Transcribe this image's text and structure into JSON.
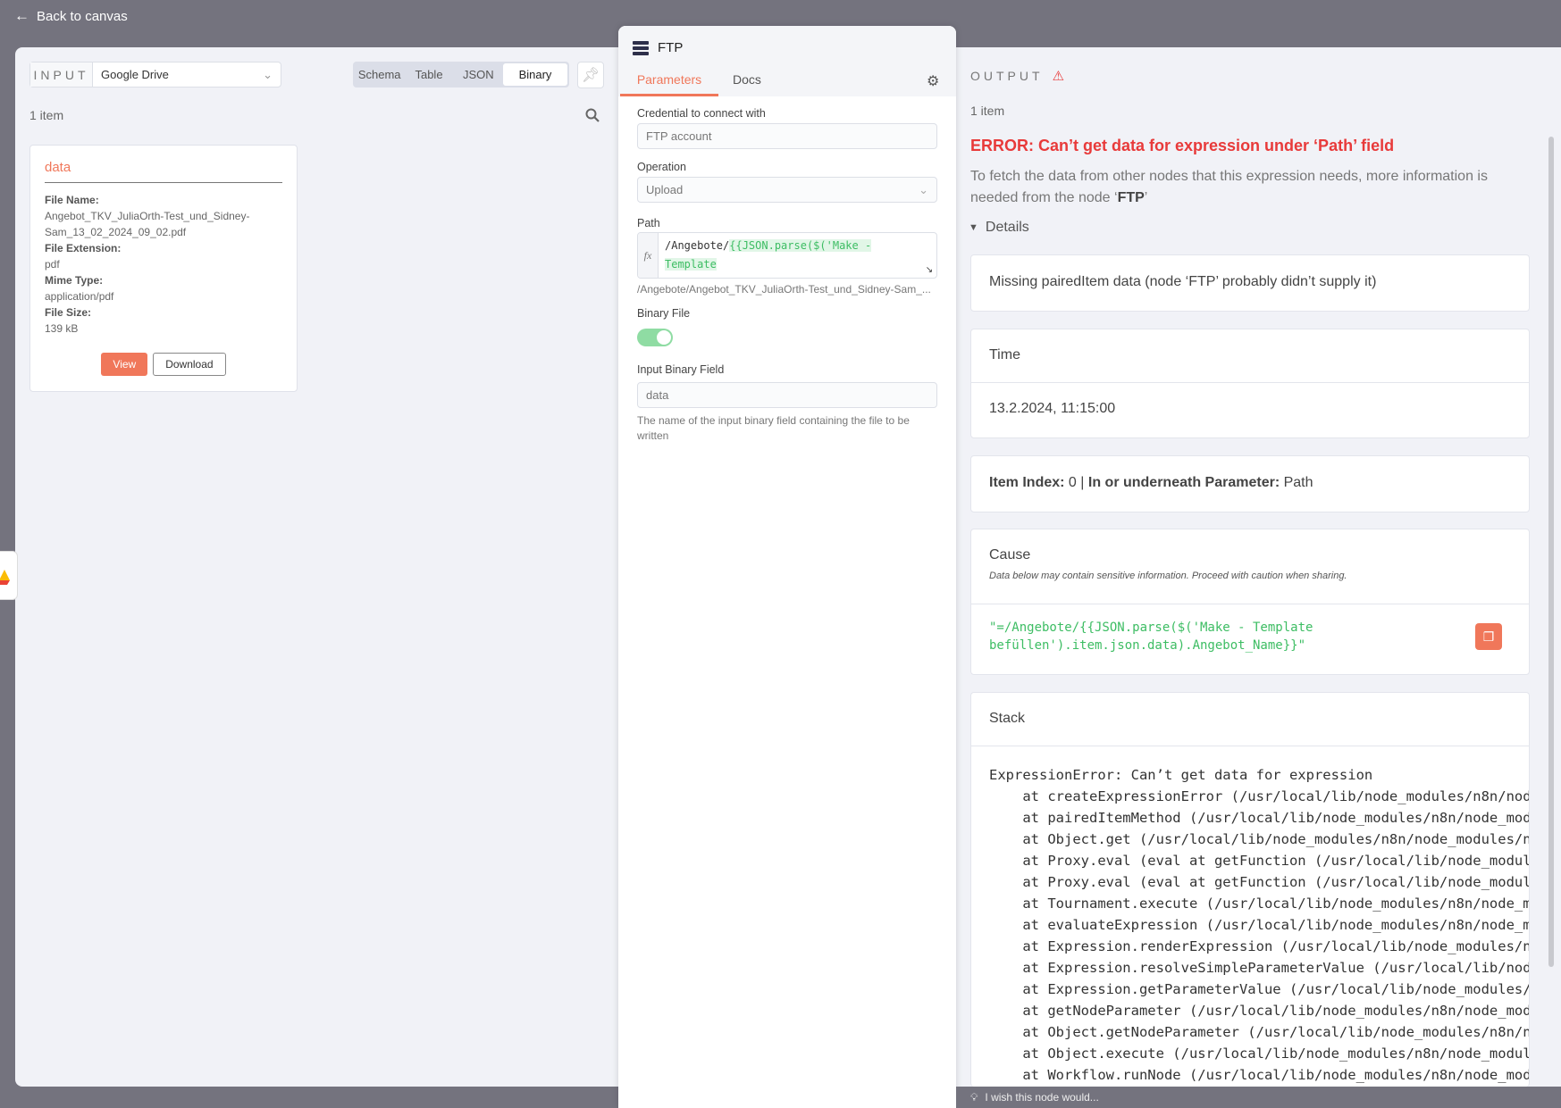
{
  "header": {
    "back_label": "Back to canvas"
  },
  "input": {
    "label": "INPUT",
    "node": "Google Drive",
    "tabs": [
      "Schema",
      "Table",
      "JSON",
      "Binary"
    ],
    "active_tab": "Binary",
    "count": "1 item",
    "binary": {
      "title": "data",
      "fields": [
        {
          "key": "File Name:",
          "value": "Angebot_TKV_JuliaOrth-Test_und_Sidney-Sam_13_02_2024_09_02.pdf"
        },
        {
          "key": "File Extension:",
          "value": "pdf"
        },
        {
          "key": "Mime Type:",
          "value": "application/pdf"
        },
        {
          "key": "File Size:",
          "value": "139 kB"
        }
      ],
      "view_label": "View",
      "download_label": "Download"
    }
  },
  "node": {
    "title": "FTP",
    "tabs": {
      "parameters": "Parameters",
      "docs": "Docs"
    },
    "credential": {
      "label": "Credential to connect with",
      "value": "FTP account"
    },
    "operation": {
      "label": "Operation",
      "value": "Upload"
    },
    "path": {
      "label": "Path",
      "static": "/Angebote/",
      "expr": "{{JSON.parse($('Make - Template befüllen').item.json.data).Angebot_Name}}",
      "preview": "/Angebote/Angebot_TKV_JuliaOrth-Test_und_Sidney-Sam_..."
    },
    "binary_file": {
      "label": "Binary File",
      "enabled": true
    },
    "input_binary_field": {
      "label": "Input Binary Field",
      "value": "data",
      "hint": "The name of the input binary field containing the file to be written"
    }
  },
  "output": {
    "label": "OUTPUT",
    "count": "1 item",
    "error_title": "ERROR: Can’t get data for expression under ‘Path’ field",
    "error_desc": "To fetch the data from other nodes that this expression needs, more information is needed from the node ‘",
    "error_desc_node": "FTP",
    "error_desc_end": "’",
    "details_label": "Details",
    "message": "Missing pairedItem data (node ‘FTP’ probably didn’t supply it)",
    "time_label": "Time",
    "time_value": "13.2.2024, 11:15:00",
    "item_index_label": "Item Index:",
    "item_index": "0",
    "param_label": "In or underneath Parameter:",
    "param_value": "Path",
    "cause_label": "Cause",
    "cause_note": "Data below may contain sensitive information. Proceed with caution when sharing.",
    "cause_value": "\"=/Angebote/{{JSON.parse($('Make - Template\nbefüllen').item.json.data).Angebot_Name}}\"",
    "stack_label": "Stack",
    "stack": "ExpressionError: Can’t get data for expression\n    at createExpressionError (/usr/local/lib/node_modules/n8n/node_modules/n8n-workflow/dist/WorkflowDataProxy.js)\n    at pairedItemMethod (/usr/local/lib/node_modules/n8n/node_modules/n8n-workflow/dist/WorkflowDataProxy.js)\n    at Object.get (/usr/local/lib/node_modules/n8n/node_modules/n8n-workflow/dist/WorkflowDataProxy.js)\n    at Proxy.eval (eval at getFunction (/usr/local/lib/node_modules/n8n/node_modules/@n8n/tournament/dist/FunctionEvaluator.js)\n    at Proxy.eval (eval at getFunction (/usr/local/lib/node_modules/n8n/node_modules/@n8n/tournament/dist/FunctionEvaluator.js)\n    at Tournament.execute (/usr/local/lib/node_modules/n8n/node_modules/@n8n/tournament/dist/index.js)\n    at evaluateExpression (/usr/local/lib/node_modules/n8n/node_modules/n8n-workflow/dist/Expression.js)\n    at Expression.renderExpression (/usr/local/lib/node_modules/n8n/node_modules/n8n-workflow/dist/Expression.js)\n    at Expression.resolveSimpleParameterValue (/usr/local/lib/node_modules/n8n/node_modules/n8n-workflow/dist/Expression.js)\n    at Expression.getParameterValue (/usr/local/lib/node_modules/n8n/node_modules/n8n-workflow/dist/Expression.js)\n    at getNodeParameter (/usr/local/lib/node_modules/n8n/node_modules/n8n-core/dist/NodeExecuteFunctions.js)\n    at Object.getNodeParameter (/usr/local/lib/node_modules/n8n/node_modules/n8n-core/dist/NodeExecuteFunctions.js)\n    at Object.execute (/usr/local/lib/node_modules/n8n/node_modules/n8n-nodes-base/dist/nodes/Ftp/Ftp.node.js)\n    at Workflow.runNode (/usr/local/lib/node_modules/n8n/node_modules/n8n-workflow/dist/Workflow.js)"
  },
  "footer": {
    "feedback": "I wish this node would..."
  },
  "colors": {
    "accent": "#f0775a",
    "error": "#e83a3a",
    "expression_green": "#3dbd63",
    "toggle": "#8fdca3",
    "backdrop": "#74737e"
  }
}
